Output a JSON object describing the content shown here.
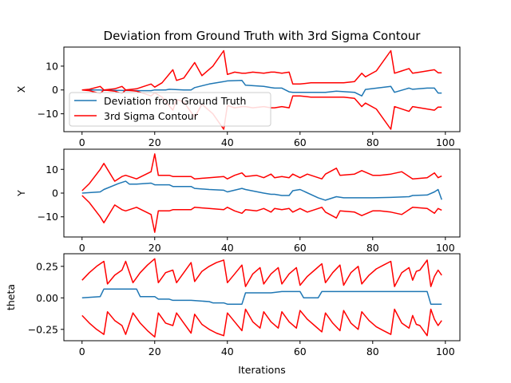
{
  "chart_data": {
    "type": "line",
    "title": "Deviation from Ground Truth with 3rd Sigma Contour",
    "xlabel": "Iterations",
    "colors": {
      "deviation": "#1f77b4",
      "sigma": "#ff0000"
    },
    "legend": {
      "placement": "lower-left of first subplot",
      "entries": [
        "Deviation from Ground Truth",
        "3rd Sigma Contour"
      ]
    },
    "xlim": [
      -5,
      104
    ],
    "xticks": [
      0,
      20,
      40,
      60,
      80,
      100
    ],
    "panels": [
      {
        "ylabel": "X",
        "ylim": [
          -17.5,
          18
        ],
        "yticks": [
          -10,
          0,
          10
        ],
        "ytick_labels": [
          "−10",
          "0",
          "10"
        ],
        "series": [
          {
            "name": "Deviation from Ground Truth",
            "x": [
              0,
              5,
              6,
              10,
              15,
              19,
              20,
              23,
              24,
              28,
              30,
              31,
              35,
              39,
              40,
              44,
              45,
              50,
              52,
              53,
              55,
              57,
              58,
              60,
              65,
              67,
              70,
              75,
              77,
              78,
              85,
              86,
              90,
              91,
              95,
              97,
              98,
              99
            ],
            "y": [
              0,
              0,
              -0.2,
              -0.2,
              -0.3,
              -0.3,
              0,
              0,
              0.3,
              0,
              0,
              1,
              2.5,
              3.5,
              3.8,
              4,
              2,
              1.5,
              1,
              0.8,
              0.8,
              -0.8,
              -1,
              -1,
              -1,
              -1,
              -0.5,
              -1,
              -2.5,
              0.2,
              1.5,
              -1,
              0.8,
              0.3,
              0.8,
              0.8,
              -1.3,
              -1.3
            ]
          },
          {
            "name": "3rd Sigma Contour upper",
            "x": [
              0,
              2,
              5,
              6,
              9,
              11,
              12,
              15,
              19,
              20,
              22,
              25,
              26,
              28,
              31,
              33,
              36,
              39,
              40,
              42,
              44,
              45,
              47,
              50,
              52,
              53,
              55,
              57,
              58,
              60,
              63,
              66,
              69,
              70,
              72,
              75,
              77,
              78,
              81,
              85,
              86,
              88,
              90,
              91,
              93,
              95,
              97,
              98,
              99
            ],
            "y": [
              0,
              0.3,
              1.5,
              0,
              0.5,
              1.5,
              0,
              0.5,
              2.5,
              1.2,
              3,
              8.5,
              4,
              5,
              11.5,
              6,
              10,
              16.5,
              6.5,
              7.5,
              7,
              7,
              7.5,
              7,
              7.5,
              7.5,
              7,
              7.5,
              2.5,
              2.5,
              3,
              3,
              3,
              3,
              3,
              3.5,
              7,
              5.5,
              8,
              16.5,
              7,
              8,
              9,
              7,
              7.5,
              8,
              8.5,
              7.2,
              7.2
            ]
          },
          {
            "name": "3rd Sigma Contour lower",
            "x": [
              0,
              2,
              5,
              6,
              9,
              11,
              12,
              15,
              19,
              20,
              22,
              25,
              26,
              28,
              31,
              33,
              36,
              39,
              40,
              42,
              44,
              45,
              47,
              50,
              52,
              53,
              55,
              57,
              58,
              60,
              63,
              66,
              69,
              70,
              72,
              75,
              77,
              78,
              81,
              85,
              86,
              88,
              90,
              91,
              93,
              95,
              97,
              98,
              99
            ],
            "y": [
              0,
              -0.3,
              -1.5,
              0,
              -0.5,
              -1.5,
              0,
              -0.5,
              -2.5,
              -1.2,
              -3,
              -8.5,
              -4,
              -5,
              -11.5,
              -6,
              -10,
              -16.5,
              -6.5,
              -7.5,
              -7,
              -7,
              -7.5,
              -7,
              -7.5,
              -7.5,
              -7,
              -7.5,
              -2.5,
              -2.5,
              -3,
              -3,
              -3,
              -3,
              -3,
              -3.5,
              -7,
              -5.5,
              -8,
              -16.5,
              -7,
              -8,
              -9,
              -7,
              -7.5,
              -8,
              -8.5,
              -7.2,
              -7.2
            ]
          }
        ]
      },
      {
        "ylabel": "Y",
        "ylim": [
          -18.5,
          18.5
        ],
        "yticks": [
          -10,
          0,
          10
        ],
        "ytick_labels": [
          "−10",
          "0",
          "10"
        ],
        "series": [
          {
            "name": "Deviation from Ground Truth",
            "x": [
              0,
              5,
              6,
              10,
              12,
              13,
              15,
              19,
              20,
              21,
              24,
              25,
              30,
              31,
              35,
              39,
              40,
              44,
              45,
              50,
              52,
              53,
              55,
              57,
              58,
              60,
              65,
              67,
              70,
              72,
              75,
              77,
              80,
              85,
              90,
              91,
              95,
              97,
              98,
              99
            ],
            "y": [
              0,
              0.5,
              1.5,
              4,
              5,
              3.8,
              3.8,
              4.2,
              3.5,
              3.5,
              3.5,
              2.8,
              2.8,
              2,
              1.5,
              1.2,
              0.5,
              2,
              1.5,
              0,
              -0.5,
              -0.5,
              -1,
              -1,
              1,
              1.5,
              -2,
              -3,
              -1.5,
              -2,
              -2,
              -2,
              -2,
              -1.8,
              -1.5,
              -1,
              -0.8,
              0.5,
              1.5,
              -2.8
            ]
          },
          {
            "name": "3rd Sigma Contour upper",
            "x": [
              0,
              2,
              5,
              6,
              9,
              11,
              12,
              15,
              19,
              20,
              21,
              24,
              25,
              30,
              31,
              35,
              39,
              40,
              42,
              44,
              45,
              48,
              50,
              52,
              53,
              55,
              57,
              58,
              60,
              62,
              64,
              66,
              67,
              70,
              71,
              75,
              77,
              80,
              82,
              85,
              88,
              90,
              91,
              95,
              97,
              98,
              99
            ],
            "y": [
              1,
              4,
              10,
              12.5,
              5,
              7,
              7.5,
              6,
              9,
              16.5,
              7.5,
              7.5,
              7,
              7,
              6,
              6.5,
              7,
              6,
              7.5,
              8.5,
              7,
              7.5,
              6.5,
              8,
              6.5,
              7,
              6.5,
              8,
              6.5,
              8,
              7,
              6,
              8,
              10.5,
              7.5,
              8,
              9.5,
              7.5,
              7.5,
              8,
              9,
              7,
              6,
              6.5,
              8.5,
              6.5,
              7.2
            ]
          },
          {
            "name": "3rd Sigma Contour lower",
            "x": [
              0,
              2,
              5,
              6,
              9,
              11,
              12,
              15,
              19,
              20,
              21,
              24,
              25,
              30,
              31,
              35,
              39,
              40,
              42,
              44,
              45,
              48,
              50,
              52,
              53,
              55,
              57,
              58,
              60,
              62,
              64,
              66,
              67,
              70,
              71,
              75,
              77,
              80,
              82,
              85,
              88,
              90,
              91,
              95,
              97,
              98,
              99
            ],
            "y": [
              -1,
              -4,
              -10,
              -12.5,
              -5,
              -7,
              -7.5,
              -6,
              -9,
              -16.5,
              -7.5,
              -7.5,
              -7,
              -7,
              -6,
              -6.5,
              -7,
              -6,
              -7.5,
              -8.5,
              -7,
              -7.5,
              -6.5,
              -8,
              -6.5,
              -7,
              -6.5,
              -8,
              -6.5,
              -8,
              -7,
              -6,
              -8,
              -10.5,
              -7.5,
              -8,
              -9.5,
              -7.5,
              -7.5,
              -8,
              -9,
              -7,
              -6,
              -6.5,
              -8.5,
              -6.5,
              -7.2
            ]
          }
        ]
      },
      {
        "ylabel": "theta",
        "ylim": [
          -0.34,
          0.35
        ],
        "yticks": [
          -0.25,
          0,
          0.25
        ],
        "ytick_labels": [
          "−0.25",
          "0.00",
          "0.25"
        ],
        "series": [
          {
            "name": "Deviation from Ground Truth",
            "x": [
              0,
              5,
              6,
              10,
              15,
              16,
              19,
              20,
              21,
              24,
              25,
              30,
              35,
              36,
              39,
              40,
              44,
              45,
              50,
              52,
              55,
              60,
              61,
              65,
              66,
              70,
              75,
              80,
              85,
              90,
              95,
              96,
              97,
              98,
              99
            ],
            "y": [
              0,
              0.01,
              0.07,
              0.07,
              0.07,
              0.01,
              0.01,
              0.01,
              -0.01,
              -0.01,
              -0.02,
              -0.02,
              -0.03,
              -0.04,
              -0.04,
              -0.05,
              -0.05,
              0.04,
              0.04,
              0.04,
              0.05,
              0.05,
              0.0,
              0.0,
              0.05,
              0.05,
              0.05,
              0.05,
              0.05,
              0.05,
              0.05,
              -0.05,
              -0.05,
              -0.05,
              -0.05
            ]
          },
          {
            "name": "3rd Sigma Contour upper",
            "x": [
              0,
              2,
              4,
              6,
              7,
              9,
              11,
              12,
              14,
              16,
              18,
              20,
              21,
              23,
              25,
              26,
              28,
              30,
              31,
              33,
              35,
              37,
              39,
              40,
              42,
              44,
              45,
              47,
              49,
              50,
              52,
              54,
              55,
              57,
              59,
              60,
              62,
              64,
              66,
              67,
              69,
              71,
              72,
              74,
              76,
              77,
              79,
              81,
              83,
              85,
              86,
              88,
              90,
              91,
              92,
              93,
              95,
              96,
              97,
              98,
              99
            ],
            "y": [
              0.14,
              0.2,
              0.25,
              0.29,
              0.11,
              0.18,
              0.22,
              0.29,
              0.12,
              0.2,
              0.26,
              0.31,
              0.12,
              0.2,
              0.22,
              0.12,
              0.2,
              0.28,
              0.13,
              0.21,
              0.25,
              0.28,
              0.3,
              0.12,
              0.19,
              0.26,
              0.09,
              0.19,
              0.24,
              0.11,
              0.19,
              0.24,
              0.11,
              0.19,
              0.24,
              0.1,
              0.17,
              0.22,
              0.27,
              0.12,
              0.2,
              0.26,
              0.1,
              0.2,
              0.25,
              0.11,
              0.18,
              0.23,
              0.26,
              0.29,
              0.09,
              0.2,
              0.24,
              0.14,
              0.21,
              0.22,
              0.3,
              0.09,
              0.17,
              0.22,
              0.18
            ]
          },
          {
            "name": "3rd Sigma Contour lower",
            "x": [
              0,
              2,
              4,
              6,
              7,
              9,
              11,
              12,
              14,
              16,
              18,
              20,
              21,
              23,
              25,
              26,
              28,
              30,
              31,
              33,
              35,
              37,
              39,
              40,
              42,
              44,
              45,
              47,
              49,
              50,
              52,
              54,
              55,
              57,
              59,
              60,
              62,
              64,
              66,
              67,
              69,
              71,
              72,
              74,
              76,
              77,
              79,
              81,
              83,
              85,
              86,
              88,
              90,
              91,
              92,
              93,
              95,
              96,
              97,
              98,
              99
            ],
            "y": [
              -0.14,
              -0.2,
              -0.25,
              -0.29,
              -0.11,
              -0.18,
              -0.22,
              -0.29,
              -0.12,
              -0.2,
              -0.26,
              -0.31,
              -0.12,
              -0.2,
              -0.22,
              -0.12,
              -0.2,
              -0.28,
              -0.13,
              -0.21,
              -0.25,
              -0.28,
              -0.3,
              -0.12,
              -0.19,
              -0.26,
              -0.09,
              -0.19,
              -0.24,
              -0.11,
              -0.19,
              -0.24,
              -0.11,
              -0.19,
              -0.24,
              -0.1,
              -0.17,
              -0.22,
              -0.27,
              -0.12,
              -0.2,
              -0.26,
              -0.1,
              -0.2,
              -0.25,
              -0.11,
              -0.18,
              -0.23,
              -0.26,
              -0.29,
              -0.09,
              -0.2,
              -0.24,
              -0.14,
              -0.21,
              -0.22,
              -0.3,
              -0.09,
              -0.17,
              -0.22,
              -0.18
            ]
          }
        ]
      }
    ]
  }
}
